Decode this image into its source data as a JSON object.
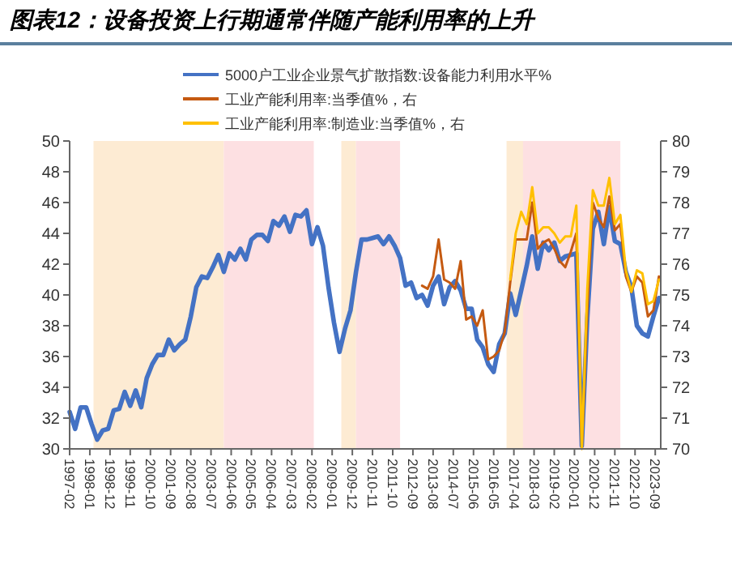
{
  "chart_data": {
    "type": "line",
    "title": "图表12：设备投资上行期通常伴随产能利用率的上升",
    "xlim": [
      "1997-02",
      "2023-12"
    ],
    "xticks": [
      "1997-02",
      "1998-01",
      "1998-12",
      "1999-11",
      "2000-10",
      "2001-09",
      "2002-08",
      "2003-07",
      "2004-06",
      "2005-05",
      "2006-04",
      "2007-03",
      "2008-02",
      "2009-01",
      "2009-12",
      "2010-11",
      "2011-10",
      "2012-09",
      "2013-08",
      "2014-07",
      "2015-06",
      "2016-05",
      "2017-04",
      "2018-03",
      "2019-02",
      "2020-01",
      "2020-12",
      "2021-11",
      "2022-10",
      "2023-09"
    ],
    "ylim": [
      30,
      50
    ],
    "yticks": [
      30,
      32,
      34,
      36,
      38,
      40,
      42,
      44,
      46,
      48,
      50
    ],
    "y2lim": [
      70,
      80
    ],
    "y2ticks": [
      70,
      71,
      72,
      73,
      74,
      75,
      76,
      77,
      78,
      79,
      80
    ],
    "legend": "top",
    "grid": false,
    "line_style": "solid",
    "marker": "none",
    "bands": [
      {
        "axis": "x",
        "from": "1998-03",
        "to": "2004-02",
        "color": "#fdebd3"
      },
      {
        "axis": "x",
        "from": "2004-02",
        "to": "2008-03",
        "color": "#fde0e2"
      },
      {
        "axis": "x",
        "from": "2009-06",
        "to": "2010-02",
        "color": "#fdebd3"
      },
      {
        "axis": "x",
        "from": "2010-02",
        "to": "2012-02",
        "color": "#fde0e2"
      },
      {
        "axis": "x",
        "from": "2016-12",
        "to": "2017-09",
        "color": "#fdebd3"
      },
      {
        "axis": "x",
        "from": "2017-09",
        "to": "2022-02",
        "color": "#fde0e2"
      }
    ],
    "series": [
      {
        "name": "5000户工业企业景气扩散指数:设备能力利用水平%",
        "color": "#4472c4",
        "axis": "y",
        "x": [
          "1997-02",
          "1997-05",
          "1997-08",
          "1997-11",
          "1998-02",
          "1998-05",
          "1998-08",
          "1998-11",
          "1999-02",
          "1999-05",
          "1999-08",
          "1999-11",
          "2000-02",
          "2000-05",
          "2000-08",
          "2000-11",
          "2001-02",
          "2001-05",
          "2001-08",
          "2001-11",
          "2002-02",
          "2002-05",
          "2002-08",
          "2002-11",
          "2003-02",
          "2003-05",
          "2003-08",
          "2003-11",
          "2004-02",
          "2004-05",
          "2004-08",
          "2004-11",
          "2005-02",
          "2005-05",
          "2005-08",
          "2005-11",
          "2006-02",
          "2006-05",
          "2006-08",
          "2006-11",
          "2007-02",
          "2007-05",
          "2007-08",
          "2007-11",
          "2008-02",
          "2008-05",
          "2008-08",
          "2008-11",
          "2009-02",
          "2009-05",
          "2009-08",
          "2009-11",
          "2010-02",
          "2010-05",
          "2010-08",
          "2010-11",
          "2011-02",
          "2011-05",
          "2011-08",
          "2011-11",
          "2012-02",
          "2012-05",
          "2012-08",
          "2012-11",
          "2013-02",
          "2013-05",
          "2013-08",
          "2013-11",
          "2014-02",
          "2014-05",
          "2014-08",
          "2014-11",
          "2015-02",
          "2015-05",
          "2015-08",
          "2015-11",
          "2016-02",
          "2016-05",
          "2016-08",
          "2016-11",
          "2017-02",
          "2017-05",
          "2017-08",
          "2017-11",
          "2018-02",
          "2018-05",
          "2018-08",
          "2018-11",
          "2019-02",
          "2019-05",
          "2019-08",
          "2019-11",
          "2020-02",
          "2020-05",
          "2020-08",
          "2020-11",
          "2021-02",
          "2021-05",
          "2021-08",
          "2021-11",
          "2022-02",
          "2022-05",
          "2022-08",
          "2022-11",
          "2023-02",
          "2023-05",
          "2023-08",
          "2023-11"
        ],
        "values": [
          32.4,
          31.3,
          32.7,
          32.7,
          31.6,
          30.6,
          31.2,
          31.3,
          32.5,
          32.6,
          33.7,
          32.8,
          33.8,
          32.7,
          34.6,
          35.5,
          36.1,
          36.1,
          37.1,
          36.4,
          36.8,
          37.1,
          38.6,
          40.5,
          41.2,
          41.1,
          41.8,
          42.6,
          41.5,
          42.7,
          42.3,
          43.0,
          42.3,
          43.6,
          43.9,
          43.9,
          43.5,
          44.8,
          44.5,
          45.1,
          44.1,
          45.2,
          45.1,
          45.5,
          43.3,
          44.4,
          43.2,
          40.5,
          38.2,
          36.3,
          37.8,
          39.0,
          41.5,
          43.6,
          43.6,
          43.7,
          43.8,
          43.3,
          43.8,
          43.2,
          42.4,
          40.6,
          40.8,
          39.8,
          40.0,
          39.3,
          40.6,
          41.2,
          39.4,
          40.5,
          40.9,
          40.3,
          39.1,
          39.1,
          37.1,
          36.6,
          35.5,
          35.0,
          36.8,
          37.5,
          40.1,
          38.7,
          40.3,
          41.9,
          43.8,
          41.7,
          43.4,
          42.9,
          43.4,
          42.2,
          42.5,
          42.6,
          42.7,
          30.2,
          38.5,
          44.3,
          45.4,
          43.3,
          45.7,
          43.5,
          43.3,
          41.5,
          40.5,
          38.0,
          37.5,
          37.3,
          38.6,
          39.8
        ]
      },
      {
        "name": "工业产能利用率:当季值%，右",
        "color": "#c55a11",
        "axis": "y2",
        "x": [
          "2013-02",
          "2013-05",
          "2013-08",
          "2013-11",
          "2014-02",
          "2014-05",
          "2014-08",
          "2014-11",
          "2015-02",
          "2015-05",
          "2015-08",
          "2015-11",
          "2016-02",
          "2016-05",
          "2016-08",
          "2016-11",
          "2017-02",
          "2017-05",
          "2017-08",
          "2017-11",
          "2018-02",
          "2018-05",
          "2018-08",
          "2018-11",
          "2019-02",
          "2019-05",
          "2019-08",
          "2019-11",
          "2020-02",
          "2020-05",
          "2020-08",
          "2020-11",
          "2021-02",
          "2021-05",
          "2021-08",
          "2021-11",
          "2022-02",
          "2022-05",
          "2022-08",
          "2022-11",
          "2023-02",
          "2023-05",
          "2023-08",
          "2023-11"
        ],
        "values": [
          75.3,
          75.2,
          75.6,
          76.8,
          75.5,
          75.4,
          75.2,
          76.1,
          74.2,
          74.3,
          74.0,
          74.5,
          72.9,
          73.0,
          73.2,
          73.8,
          75.4,
          76.8,
          76.8,
          76.8,
          78.0,
          76.5,
          76.7,
          76.8,
          76.5,
          76.1,
          75.9,
          76.4,
          77.0,
          70.0,
          74.5,
          78.0,
          77.5,
          77.2,
          78.2,
          77.1,
          77.3,
          75.6,
          75.1,
          75.6,
          75.4,
          74.3,
          74.5,
          75.6
        ]
      },
      {
        "name": "工业产能利用率:制造业:当季值%，右",
        "color": "#ffc000",
        "axis": "y2",
        "x": [
          "2017-02",
          "2017-05",
          "2017-08",
          "2017-11",
          "2018-02",
          "2018-05",
          "2018-08",
          "2018-11",
          "2019-02",
          "2019-05",
          "2019-08",
          "2019-11",
          "2020-02",
          "2020-05",
          "2020-08",
          "2020-11",
          "2021-02",
          "2021-05",
          "2021-08",
          "2021-11",
          "2022-02",
          "2022-05",
          "2022-08",
          "2022-11",
          "2023-02",
          "2023-05",
          "2023-08",
          "2023-11"
        ],
        "values": [
          75.5,
          77.0,
          77.7,
          77.3,
          78.5,
          77.0,
          77.2,
          77.2,
          77.0,
          76.7,
          76.9,
          76.9,
          77.9,
          70.0,
          75.2,
          78.4,
          77.9,
          77.9,
          78.8,
          77.3,
          77.6,
          75.8,
          75.1,
          75.8,
          75.7,
          74.7,
          74.8,
          75.5
        ]
      }
    ]
  }
}
